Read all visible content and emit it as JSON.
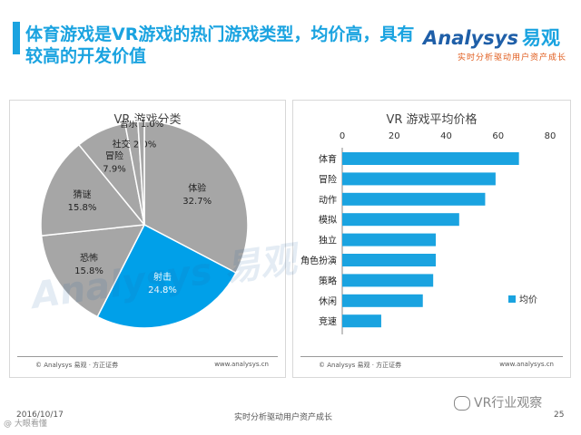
{
  "title": "体育游戏是VR游戏的热门游戏类型，均价高，具有较高的开发价值",
  "logo": {
    "main": "Analysys",
    "cn": "易观",
    "sub": "实时分析驱动用户资产成长"
  },
  "chart_data": [
    {
      "type": "pie",
      "title": "VR 游戏分类",
      "categories": [
        "体验",
        "射击",
        "恐怖",
        "猜谜",
        "冒险",
        "社交",
        "音乐"
      ],
      "values": [
        32.7,
        24.8,
        15.8,
        15.8,
        7.9,
        2.0,
        1.0
      ],
      "value_labels": [
        "32.7%",
        "24.8%",
        "15.8%",
        "15.8%",
        "7.9%",
        "2.0%",
        "1.0%"
      ],
      "colors": [
        "#a6a6a6",
        "#00a0e9",
        "#a6a6a6",
        "#a6a6a6",
        "#a6a6a6",
        "#a6a6a6",
        "#a6a6a6"
      ]
    },
    {
      "type": "bar",
      "orientation": "horizontal",
      "title": "VR 游戏平均价格",
      "categories": [
        "体育",
        "冒险",
        "动作",
        "模拟",
        "独立",
        "角色扮演",
        "策略",
        "休闲",
        "竞速"
      ],
      "series": [
        {
          "name": "均价",
          "values": [
            68,
            59,
            55,
            45,
            36,
            36,
            35,
            31,
            15
          ]
        }
      ],
      "xlim": [
        0,
        80
      ],
      "xticks": [
        0,
        20,
        40,
        60,
        80
      ],
      "legend": "right",
      "color": "#1aa3e0"
    }
  ],
  "source_left": "© Analysys 易观 · 方正证券",
  "source_right": "www.analysys.cn",
  "footer": {
    "date": "2016/10/17",
    "center": "实时分析驱动用户资产成长",
    "page": "25"
  },
  "wechat": "VR行业观察",
  "corner": "@ 大眼看懂"
}
